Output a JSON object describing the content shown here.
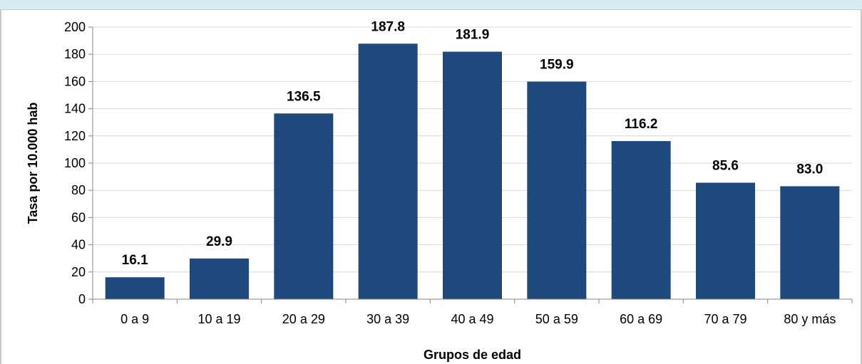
{
  "chart_data": {
    "type": "bar",
    "categories": [
      "0 a 9",
      "10 a 19",
      "20 a 29",
      "30 a 39",
      "40 a 49",
      "50 a 59",
      "60 a 69",
      "70 a 79",
      "80 y más"
    ],
    "values": [
      16.1,
      29.9,
      136.5,
      187.8,
      181.9,
      159.9,
      116.2,
      85.6,
      83.0
    ],
    "data_labels": [
      "16.1",
      "29.9",
      "136.5",
      "187.8",
      "181.9",
      "159.9",
      "116.2",
      "85.6",
      "83.0"
    ],
    "xlabel": "Grupos de edad",
    "ylabel": "Tasa por 10.000 hab",
    "ylim": [
      0,
      200
    ],
    "yticks": [
      0,
      20,
      40,
      60,
      80,
      100,
      120,
      140,
      160,
      180,
      200
    ],
    "grid": true,
    "legend": "none",
    "bar_color": "#1f497d",
    "band_color": "#d7ecf3"
  }
}
